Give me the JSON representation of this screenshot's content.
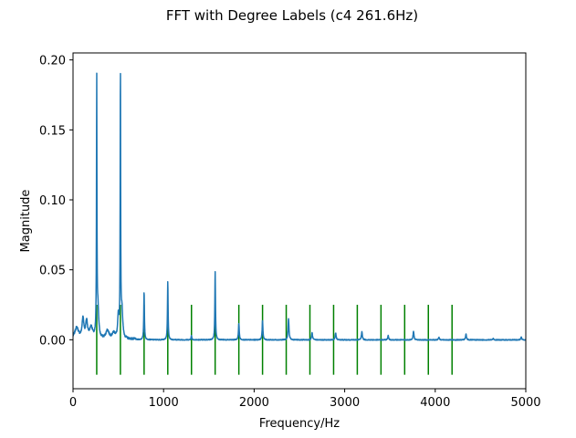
{
  "chart_data": {
    "type": "line",
    "title": "FFT with Degree Labels (c4 261.6Hz)",
    "xlabel": "Frequency/Hz",
    "ylabel": "Magnitude",
    "xlim": [
      0,
      5000
    ],
    "ylim": [
      -0.035,
      0.205
    ],
    "xticks": [
      0,
      1000,
      2000,
      3000,
      4000,
      5000
    ],
    "xtick_labels": [
      "0",
      "1000",
      "2000",
      "3000",
      "4000",
      "5000"
    ],
    "yticks": [
      0.0,
      0.05,
      0.1,
      0.15,
      0.2
    ],
    "ytick_labels": [
      "0.00",
      "0.05",
      "0.10",
      "0.15",
      "0.20"
    ],
    "grid": false,
    "colors": {
      "spectrum": "#1f77b4",
      "degree_lines": "#008000"
    },
    "degree_lines": {
      "x": [
        261.6,
        523.2,
        784.8,
        1046.4,
        1308.0,
        1569.6,
        1831.2,
        2092.8,
        2354.4,
        2616.0,
        2877.6,
        3139.2,
        3400.8,
        3662.4,
        3924.0,
        4185.6
      ],
      "ymin": -0.025,
      "ymax": 0.025
    },
    "peaks": [
      {
        "x": 40,
        "y": 0.008,
        "w": 25
      },
      {
        "x": 110,
        "y": 0.014,
        "w": 12
      },
      {
        "x": 150,
        "y": 0.012,
        "w": 12
      },
      {
        "x": 200,
        "y": 0.008,
        "w": 20
      },
      {
        "x": 261.6,
        "y": 0.184,
        "w": 3
      },
      {
        "x": 275,
        "y": 0.02,
        "w": 10
      },
      {
        "x": 380,
        "y": 0.006,
        "w": 20
      },
      {
        "x": 450,
        "y": 0.004,
        "w": 20
      },
      {
        "x": 500,
        "y": 0.015,
        "w": 8
      },
      {
        "x": 523.2,
        "y": 0.195,
        "w": 3
      },
      {
        "x": 540,
        "y": 0.02,
        "w": 10
      },
      {
        "x": 784.8,
        "y": 0.035,
        "w": 4
      },
      {
        "x": 1046.4,
        "y": 0.042,
        "w": 4
      },
      {
        "x": 1308.0,
        "y": 0.003,
        "w": 5
      },
      {
        "x": 1569.6,
        "y": 0.049,
        "w": 4
      },
      {
        "x": 1831.2,
        "y": 0.012,
        "w": 5
      },
      {
        "x": 2092.8,
        "y": 0.014,
        "w": 5
      },
      {
        "x": 2380,
        "y": 0.015,
        "w": 6
      },
      {
        "x": 2640,
        "y": 0.005,
        "w": 6
      },
      {
        "x": 2900,
        "y": 0.005,
        "w": 6
      },
      {
        "x": 3190,
        "y": 0.006,
        "w": 6
      },
      {
        "x": 3480,
        "y": 0.003,
        "w": 6
      },
      {
        "x": 3760,
        "y": 0.006,
        "w": 6
      },
      {
        "x": 4040,
        "y": 0.002,
        "w": 6
      },
      {
        "x": 4340,
        "y": 0.004,
        "w": 6
      },
      {
        "x": 4640,
        "y": 0.001,
        "w": 6
      },
      {
        "x": 4950,
        "y": 0.002,
        "w": 6
      }
    ]
  }
}
